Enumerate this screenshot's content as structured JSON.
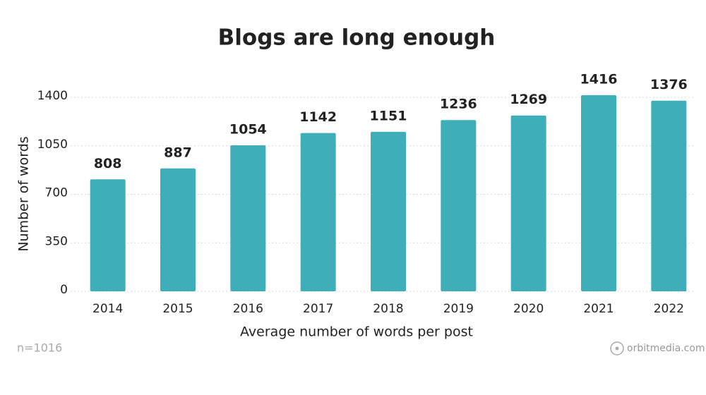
{
  "chart_data": {
    "type": "bar",
    "title": "Blogs are long enough",
    "x_label": "Average number of words per post",
    "y_label": "Number of words",
    "categories": [
      "2014",
      "2015",
      "2016",
      "2017",
      "2018",
      "2019",
      "2020",
      "2021",
      "2022"
    ],
    "values": [
      808,
      887,
      1054,
      1142,
      1151,
      1236,
      1269,
      1416,
      1376
    ],
    "color": "#3eaeb9",
    "ylim": [
      0,
      1400
    ],
    "yticks": [
      0,
      350,
      700,
      1050,
      1400
    ],
    "grid": true,
    "note": "n=1016",
    "source": "orbitmedia.com"
  }
}
